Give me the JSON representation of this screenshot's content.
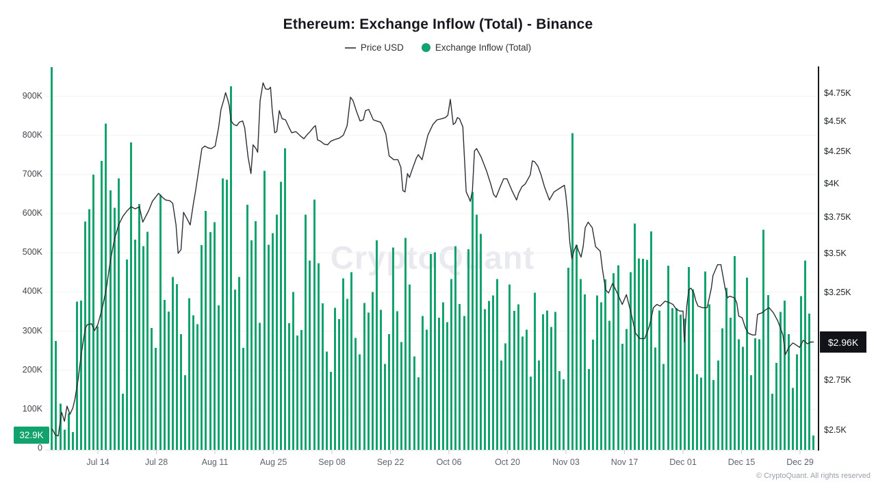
{
  "title": "Ethereum: Exchange Inflow (Total) - Binance",
  "legend": [
    {
      "label": "Price USD",
      "swatch": "line-dash"
    },
    {
      "label": "Exchange Inflow (Total)",
      "swatch": "green-dot"
    }
  ],
  "watermark": "CryptoQuant",
  "copyright": "© CryptoQuant. All rights reserved",
  "badges": {
    "inflow_latest": "32.9K",
    "price_latest": "$2.96K"
  },
  "colors": {
    "bar": "#12a26e",
    "line": "#2b2e34",
    "grid": "#f1f2f4",
    "axis": "#15171c",
    "badge_price_bg": "#111318"
  },
  "chart_data": {
    "type": "bar+line",
    "title": "Ethereum: Exchange Inflow (Total) - Binance",
    "x_range": {
      "start": "Jul 01",
      "end": "Dec 31",
      "points": 184
    },
    "x_ticks": [
      "Jul 14",
      "Jul 28",
      "Aug 11",
      "Aug 25",
      "Sep 08",
      "Sep 22",
      "Oct 06",
      "Oct 20",
      "Nov 03",
      "Nov 17",
      "Dec 01",
      "Dec 15",
      "Dec 29"
    ],
    "left_axis": {
      "unit": "K (ETH)",
      "labels": [
        "900K",
        "800K",
        "700K",
        "600K",
        "500K",
        "400K",
        "300K",
        "200K",
        "100K",
        "0"
      ],
      "values": [
        900,
        800,
        700,
        600,
        500,
        400,
        300,
        200,
        100,
        0
      ],
      "ylim": [
        0,
        975
      ],
      "scale": "linear"
    },
    "right_axis": {
      "unit": "USD",
      "labels": [
        "$4.75K",
        "$4.5K",
        "$4.25K",
        "$4K",
        "$3.75K",
        "$3.5K",
        "$3.25K",
        "$2.75K",
        "$2.5K"
      ],
      "values": [
        4750,
        4500,
        4250,
        4000,
        3750,
        3500,
        3250,
        2750,
        2500
      ],
      "ylim": [
        2420,
        4990
      ],
      "scale": "log"
    },
    "grid": "horizontal",
    "legend_position": "top-center",
    "bar_series": {
      "name": "Exchange Inflow (Total)",
      "unit": "thousand ETH",
      "latest_label": "32.9K",
      "values": [
        975,
        275,
        115,
        48,
        90,
        42,
        375,
        378,
        580,
        612,
        700,
        312,
        735,
        830,
        660,
        615,
        690,
        140,
        483,
        782,
        534,
        625,
        517,
        554,
        308,
        257,
        648,
        380,
        350,
        438,
        420,
        292,
        187,
        384,
        340,
        318,
        520,
        607,
        553,
        578,
        366,
        690,
        687,
        926,
        406,
        438,
        257,
        623,
        532,
        581,
        321,
        710,
        521,
        550,
        598,
        682,
        767,
        320,
        400,
        289,
        303,
        598,
        480,
        636,
        473,
        371,
        248,
        196,
        360,
        331,
        435,
        382,
        451,
        283,
        241,
        372,
        347,
        400,
        532,
        354,
        216,
        292,
        514,
        351,
        272,
        538,
        419,
        235,
        182,
        339,
        304,
        497,
        501,
        334,
        374,
        323,
        433,
        517,
        369,
        339,
        509,
        655,
        598,
        549,
        356,
        377,
        391,
        433,
        225,
        269,
        419,
        352,
        368,
        286,
        304,
        184,
        398,
        225,
        343,
        353,
        311,
        349,
        198,
        177,
        462,
        806,
        521,
        433,
        394,
        203,
        278,
        391,
        374,
        432,
        326,
        448,
        468,
        268,
        305,
        451,
        575,
        486,
        485,
        482,
        555,
        258,
        353,
        216,
        467,
        359,
        359,
        342,
        332,
        464,
        407,
        190,
        181,
        452,
        368,
        175,
        225,
        307,
        410,
        334,
        492,
        279,
        260,
        437,
        187,
        282,
        279,
        559,
        392,
        140,
        219,
        349,
        378,
        292,
        155,
        241,
        389,
        480,
        345,
        33
      ]
    },
    "line_series": {
      "name": "Price USD",
      "unit": "USD",
      "latest_label": "$2.96K",
      "points": [
        [
          0,
          2510
        ],
        [
          0.8,
          2480
        ],
        [
          1.5,
          2475
        ],
        [
          2.3,
          2590
        ],
        [
          3,
          2545
        ],
        [
          3.6,
          2620
        ],
        [
          4.3,
          2580
        ],
        [
          5,
          2610
        ],
        [
          5.5,
          2655
        ],
        [
          6.3,
          2760
        ],
        [
          7,
          2890
        ],
        [
          8,
          3040
        ],
        [
          8.5,
          3060
        ],
        [
          9.5,
          3065
        ],
        [
          10.2,
          3025
        ],
        [
          11,
          3060
        ],
        [
          12,
          3150
        ],
        [
          13,
          3270
        ],
        [
          14,
          3450
        ],
        [
          15,
          3600
        ],
        [
          16,
          3700
        ],
        [
          17,
          3760
        ],
        [
          18,
          3800
        ],
        [
          19,
          3830
        ],
        [
          20,
          3815
        ],
        [
          21,
          3830
        ],
        [
          21.8,
          3720
        ],
        [
          22.5,
          3760
        ],
        [
          23.2,
          3800
        ],
        [
          24.1,
          3870
        ],
        [
          25.1,
          3910
        ],
        [
          25.6,
          3930
        ],
        [
          26.5,
          3900
        ],
        [
          27.3,
          3880
        ],
        [
          28.3,
          3875
        ],
        [
          29,
          3855
        ],
        [
          29.8,
          3700
        ],
        [
          30.3,
          3505
        ],
        [
          31,
          3530
        ],
        [
          31.6,
          3790
        ],
        [
          32.4,
          3745
        ],
        [
          33.2,
          3700
        ],
        [
          34,
          3860
        ],
        [
          34.4,
          3930
        ],
        [
          35.2,
          4100
        ],
        [
          36,
          4280
        ],
        [
          36.7,
          4300
        ],
        [
          37.5,
          4285
        ],
        [
          38.3,
          4280
        ],
        [
          39.2,
          4300
        ],
        [
          40,
          4450
        ],
        [
          40.6,
          4610
        ],
        [
          41.3,
          4700
        ],
        [
          41.7,
          4760
        ],
        [
          42.2,
          4700
        ],
        [
          42.6,
          4640
        ],
        [
          43,
          4510
        ],
        [
          43.7,
          4480
        ],
        [
          44.4,
          4470
        ],
        [
          45,
          4500
        ],
        [
          45.8,
          4510
        ],
        [
          46.3,
          4450
        ],
        [
          47.1,
          4210
        ],
        [
          47.8,
          4080
        ],
        [
          48.3,
          4310
        ],
        [
          49,
          4280
        ],
        [
          49.4,
          4250
        ],
        [
          50,
          4690
        ],
        [
          50.7,
          4850
        ],
        [
          51.3,
          4795
        ],
        [
          52,
          4790
        ],
        [
          52.5,
          4810
        ],
        [
          52.9,
          4610
        ],
        [
          53.5,
          4410
        ],
        [
          54,
          4420
        ],
        [
          54.6,
          4600
        ],
        [
          55.3,
          4530
        ],
        [
          56.1,
          4520
        ],
        [
          57,
          4450
        ],
        [
          57.6,
          4410
        ],
        [
          58.6,
          4420
        ],
        [
          59.2,
          4400
        ],
        [
          59.8,
          4380
        ],
        [
          60.5,
          4360
        ],
        [
          61.2,
          4390
        ],
        [
          62,
          4420
        ],
        [
          62.9,
          4460
        ],
        [
          63.3,
          4470
        ],
        [
          63.8,
          4350
        ],
        [
          64.5,
          4340
        ],
        [
          65.4,
          4315
        ],
        [
          66.2,
          4310
        ],
        [
          67,
          4340
        ],
        [
          68,
          4355
        ],
        [
          69,
          4365
        ],
        [
          70,
          4390
        ],
        [
          70.9,
          4470
        ],
        [
          71.7,
          4720
        ],
        [
          72.3,
          4690
        ],
        [
          73.1,
          4600
        ],
        [
          74,
          4510
        ],
        [
          74.8,
          4520
        ],
        [
          75.3,
          4600
        ],
        [
          76.1,
          4610
        ],
        [
          77.2,
          4520
        ],
        [
          78,
          4510
        ],
        [
          78.9,
          4500
        ],
        [
          79.4,
          4470
        ],
        [
          80.2,
          4400
        ],
        [
          81,
          4220
        ],
        [
          82.1,
          4190
        ],
        [
          83.1,
          4190
        ],
        [
          83.8,
          4130
        ],
        [
          84.3,
          3950
        ],
        [
          84.8,
          3940
        ],
        [
          85.4,
          4080
        ],
        [
          85.9,
          4050
        ],
        [
          86.4,
          4100
        ],
        [
          87.5,
          4200
        ],
        [
          88,
          4230
        ],
        [
          88.9,
          4190
        ],
        [
          90.3,
          4390
        ],
        [
          91.5,
          4480
        ],
        [
          92.5,
          4520
        ],
        [
          93.6,
          4530
        ],
        [
          94.5,
          4540
        ],
        [
          95.1,
          4560
        ],
        [
          95.7,
          4700
        ],
        [
          96.4,
          4480
        ],
        [
          96.9,
          4495
        ],
        [
          97.4,
          4540
        ],
        [
          97.9,
          4530
        ],
        [
          98.7,
          4460
        ],
        [
          99.5,
          3940
        ],
        [
          100.1,
          3900
        ],
        [
          100.5,
          3870
        ],
        [
          101,
          3950
        ],
        [
          101.5,
          4260
        ],
        [
          102,
          4280
        ],
        [
          103.1,
          4210
        ],
        [
          104.4,
          4100
        ],
        [
          105.4,
          4000
        ],
        [
          106.1,
          3920
        ],
        [
          106.7,
          3900
        ],
        [
          107.7,
          3980
        ],
        [
          108.5,
          4040
        ],
        [
          109.3,
          4040
        ],
        [
          110.5,
          3950
        ],
        [
          111.6,
          3880
        ],
        [
          112.1,
          3930
        ],
        [
          112.9,
          3980
        ],
        [
          113.7,
          4000
        ],
        [
          114.9,
          4070
        ],
        [
          115.4,
          4180
        ],
        [
          115.9,
          4175
        ],
        [
          116.7,
          4140
        ],
        [
          117.5,
          4070
        ],
        [
          118.3,
          3980
        ],
        [
          119.5,
          3880
        ],
        [
          120.6,
          3940
        ],
        [
          121.6,
          3960
        ],
        [
          123.1,
          3990
        ],
        [
          123.4,
          3930
        ],
        [
          123.9,
          3780
        ],
        [
          124.4,
          3580
        ],
        [
          124.9,
          3470
        ],
        [
          125.5,
          3530
        ],
        [
          126,
          3560
        ],
        [
          126.5,
          3520
        ],
        [
          127.1,
          3480
        ],
        [
          127.6,
          3550
        ],
        [
          128.1,
          3680
        ],
        [
          128.8,
          3720
        ],
        [
          129.3,
          3700
        ],
        [
          129.8,
          3680
        ],
        [
          130.6,
          3550
        ],
        [
          131.7,
          3520
        ],
        [
          132.2,
          3410
        ],
        [
          133,
          3270
        ],
        [
          133.7,
          3250
        ],
        [
          134.7,
          3310
        ],
        [
          135.8,
          3250
        ],
        [
          137,
          3180
        ],
        [
          138,
          3240
        ],
        [
          139.1,
          3130
        ],
        [
          140.2,
          3010
        ],
        [
          141.2,
          2980
        ],
        [
          142.4,
          2980
        ],
        [
          143.5,
          3050
        ],
        [
          144.5,
          3160
        ],
        [
          145.3,
          3180
        ],
        [
          146.1,
          3170
        ],
        [
          147.3,
          3200
        ],
        [
          148.4,
          3190
        ],
        [
          149.2,
          3180
        ],
        [
          150,
          3150
        ],
        [
          150.8,
          3140
        ],
        [
          151.6,
          3140
        ],
        [
          151.9,
          2960
        ],
        [
          152.5,
          3170
        ],
        [
          153,
          3270
        ],
        [
          153.5,
          3280
        ],
        [
          154.2,
          3250
        ],
        [
          154.7,
          3200
        ],
        [
          155.2,
          3170
        ],
        [
          156.3,
          3160
        ],
        [
          157.4,
          3160
        ],
        [
          158.4,
          3280
        ],
        [
          158.8,
          3360
        ],
        [
          159.9,
          3430
        ],
        [
          160.7,
          3430
        ],
        [
          161.7,
          3280
        ],
        [
          162.3,
          3220
        ],
        [
          162.8,
          3230
        ],
        [
          164,
          3220
        ],
        [
          164.5,
          3190
        ],
        [
          165,
          3110
        ],
        [
          165.8,
          3100
        ],
        [
          166.6,
          3040
        ],
        [
          167.3,
          3010
        ],
        [
          168.3,
          3000
        ],
        [
          169,
          3000
        ],
        [
          169.5,
          3120
        ],
        [
          170.6,
          3130
        ],
        [
          171.6,
          3150
        ],
        [
          172.3,
          3160
        ],
        [
          173.3,
          3130
        ],
        [
          174.4,
          3080
        ],
        [
          175.6,
          3000
        ],
        [
          176.2,
          2890
        ],
        [
          177,
          2930
        ],
        [
          178,
          2955
        ],
        [
          179,
          2940
        ],
        [
          179.6,
          2930
        ],
        [
          180.5,
          2970
        ],
        [
          181.5,
          2950
        ],
        [
          182.3,
          2960
        ],
        [
          183,
          2960
        ]
      ]
    }
  }
}
